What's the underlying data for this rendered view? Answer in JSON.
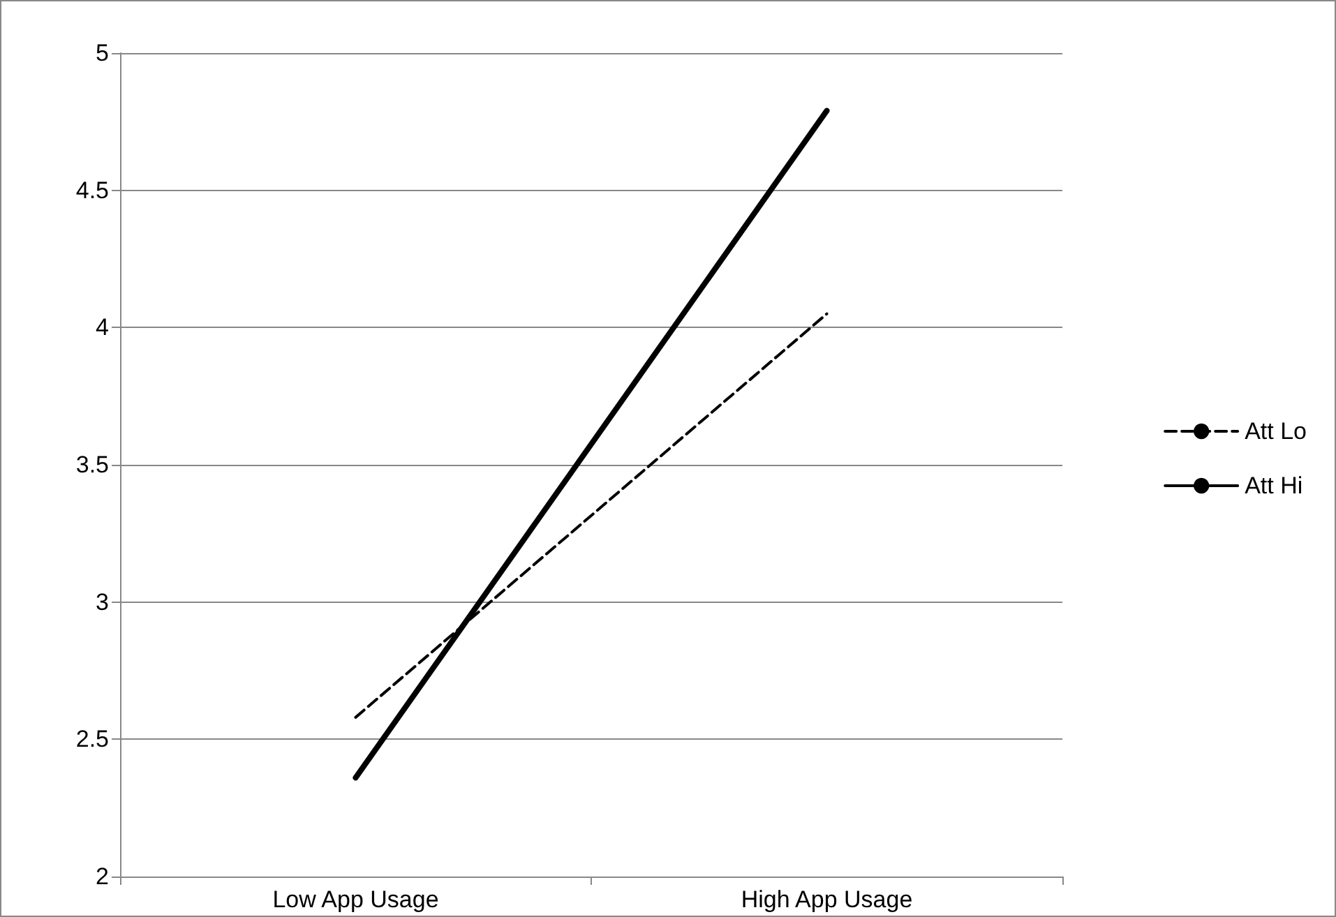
{
  "chart_data": {
    "type": "line",
    "categories": [
      "Low App Usage",
      "High App Usage"
    ],
    "series": [
      {
        "name": "Att Lo",
        "color": "#000000",
        "line_style": "dashed",
        "values": [
          2.58,
          4.05
        ]
      },
      {
        "name": "Att Hi",
        "color": "#000000",
        "line_style": "solid",
        "values": [
          2.36,
          4.79
        ]
      }
    ],
    "ylim": [
      2,
      5
    ],
    "yticks": [
      2,
      2.5,
      3,
      3.5,
      4,
      4.5,
      5
    ],
    "grid": "y",
    "legend": "right",
    "marker": "none"
  }
}
